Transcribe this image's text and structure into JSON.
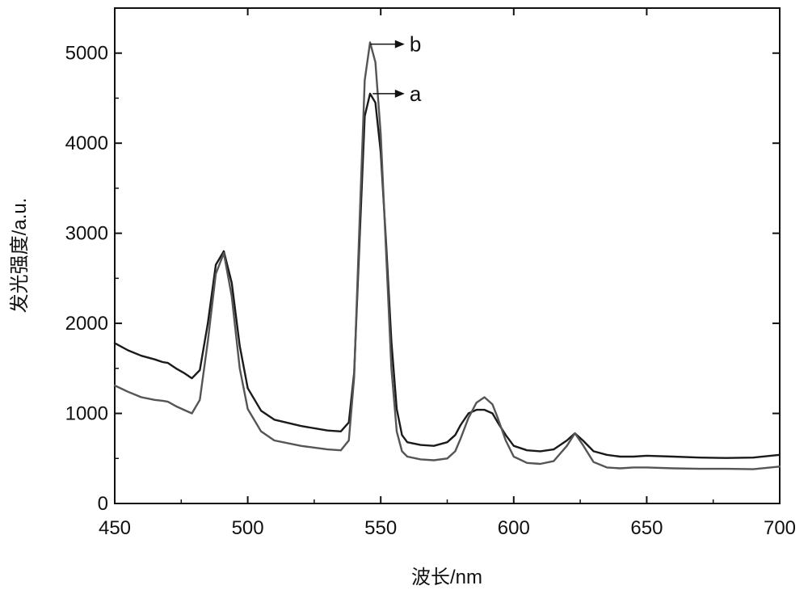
{
  "chart_data": {
    "type": "line",
    "xlabel": "波长/nm",
    "ylabel": "发光强度/a.u.",
    "xlim": [
      450,
      700
    ],
    "ylim": [
      0,
      5500
    ],
    "xticks": [
      450,
      500,
      550,
      600,
      650,
      700
    ],
    "yticks": [
      0,
      1000,
      2000,
      3000,
      4000,
      5000
    ],
    "grid": false,
    "legend": "none",
    "series": [
      {
        "name": "a",
        "color": "#1a1a1a",
        "x": [
          450,
          455,
          460,
          465,
          468,
          470,
          473,
          476,
          479,
          482,
          485,
          488,
          491,
          494,
          497,
          500,
          505,
          510,
          520,
          530,
          535,
          538,
          540,
          542,
          544,
          546,
          548,
          550,
          552,
          554,
          556,
          558,
          560,
          565,
          570,
          575,
          578,
          580,
          583,
          586,
          589,
          592,
          594,
          597,
          600,
          605,
          610,
          615,
          620,
          623,
          626,
          630,
          635,
          640,
          645,
          650,
          660,
          670,
          680,
          690,
          700
        ],
        "y": [
          1780,
          1700,
          1640,
          1600,
          1570,
          1560,
          1500,
          1450,
          1390,
          1480,
          2000,
          2650,
          2800,
          2450,
          1750,
          1280,
          1030,
          930,
          860,
          810,
          800,
          900,
          1450,
          2900,
          4300,
          4550,
          4450,
          3900,
          2900,
          1800,
          1050,
          760,
          680,
          650,
          640,
          680,
          760,
          870,
          1000,
          1040,
          1040,
          1000,
          900,
          760,
          640,
          590,
          580,
          600,
          700,
          780,
          700,
          580,
          540,
          520,
          520,
          530,
          520,
          510,
          505,
          510,
          540
        ]
      },
      {
        "name": "b",
        "color": "#555555",
        "x": [
          450,
          455,
          460,
          465,
          468,
          470,
          473,
          476,
          479,
          482,
          485,
          488,
          491,
          494,
          497,
          500,
          505,
          510,
          520,
          530,
          535,
          538,
          540,
          542,
          544,
          546,
          548,
          550,
          552,
          554,
          556,
          558,
          560,
          565,
          570,
          575,
          578,
          580,
          583,
          586,
          589,
          592,
          594,
          597,
          600,
          605,
          610,
          615,
          620,
          623,
          626,
          630,
          635,
          640,
          645,
          650,
          660,
          670,
          680,
          690,
          700
        ],
        "y": [
          1310,
          1240,
          1180,
          1150,
          1140,
          1130,
          1080,
          1040,
          1000,
          1150,
          1800,
          2550,
          2780,
          2300,
          1500,
          1050,
          800,
          700,
          640,
          600,
          590,
          700,
          1400,
          3100,
          4700,
          5120,
          4900,
          4100,
          2800,
          1500,
          800,
          580,
          520,
          490,
          480,
          500,
          580,
          720,
          950,
          1120,
          1180,
          1100,
          950,
          700,
          520,
          450,
          440,
          470,
          640,
          780,
          650,
          460,
          400,
          390,
          400,
          400,
          390,
          385,
          385,
          380,
          410
        ]
      }
    ],
    "annotations": [
      {
        "label": "b",
        "from": [
          546,
          5100
        ],
        "to": [
          559,
          5100
        ]
      },
      {
        "label": "a",
        "from": [
          547,
          4550
        ],
        "to": [
          559,
          4550
        ]
      }
    ]
  }
}
